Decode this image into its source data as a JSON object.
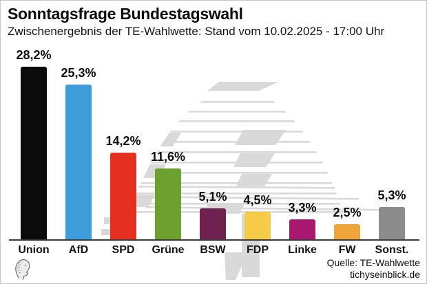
{
  "page": {
    "background": "#ffffff",
    "border_color": "#c6c6c6"
  },
  "header": {
    "title": "Sonntagsfrage Bundestagswahl",
    "subtitle": "Zwischenergebnis der TE-Wahlwette: Stand vom 10.02.2025 - 17:00 Uhr"
  },
  "chart_data": {
    "type": "bar",
    "title": "Sonntagsfrage Bundestagswahl",
    "subtitle": "Zwischenergebnis der TE-Wahlwette: Stand vom 10.02.2025 - 17:00 Uhr",
    "categories": [
      "Union",
      "AfD",
      "SPD",
      "Grüne",
      "BSW",
      "FDP",
      "Linke",
      "FW",
      "Sonst."
    ],
    "values": [
      28.2,
      25.3,
      14.2,
      11.6,
      5.1,
      4.5,
      3.3,
      2.5,
      5.3
    ],
    "value_labels": [
      "28,2%",
      "25,3%",
      "14,2%",
      "11,6%",
      "5,1%",
      "4,5%",
      "3,3%",
      "2,5%",
      "5,3%"
    ],
    "bar_colors": [
      "#0b0b0b",
      "#3f9cda",
      "#e53020",
      "#6ca02f",
      "#6f2150",
      "#f6cb47",
      "#a8186e",
      "#f0a43c",
      "#8c8c8c"
    ],
    "ylim": [
      0,
      30
    ],
    "xlabel": "",
    "ylabel": "",
    "grid": false,
    "legend": false,
    "watermark": "reichstag-dome-sketch",
    "watermark_color": "#d9d9d9",
    "axis_color": "#3c3c3c"
  },
  "footer": {
    "source_line1": "Quelle: TE-Wahlwette",
    "source_line2": "tichyseinblick.de",
    "logo_name": "tichys-einblick-head-logo"
  }
}
